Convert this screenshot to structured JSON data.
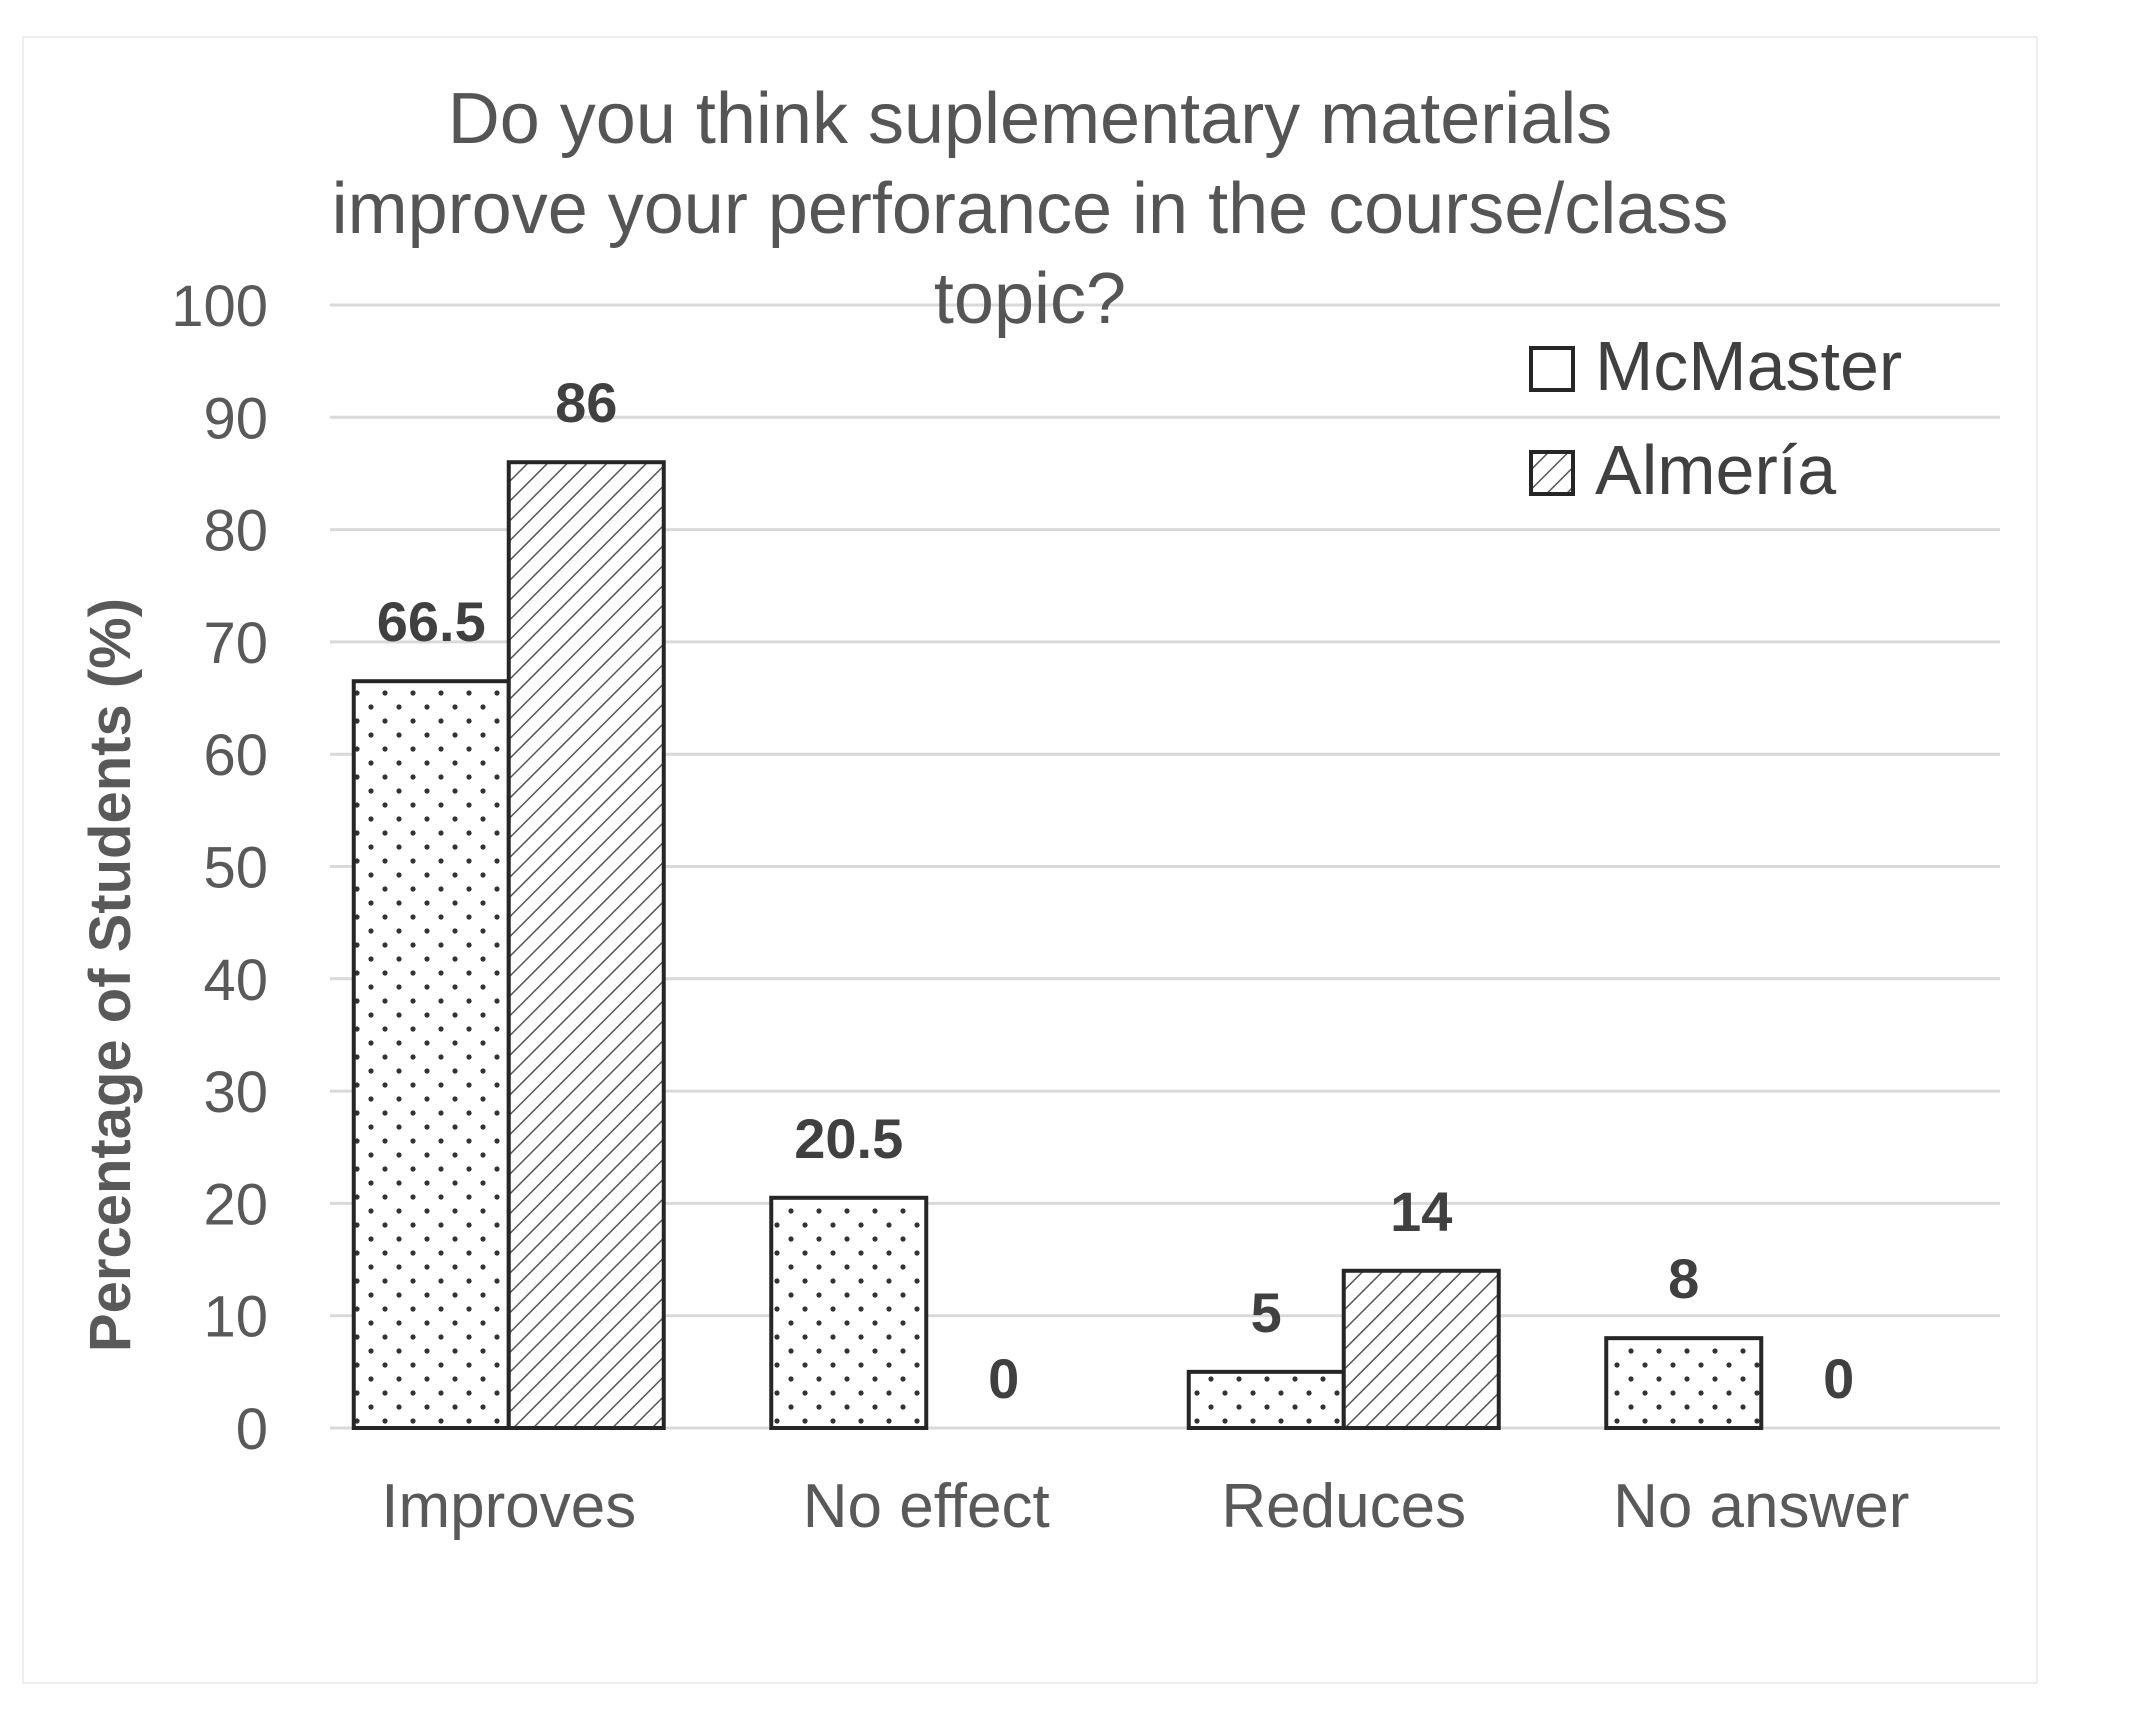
{
  "chart_data": {
    "type": "bar",
    "title_lines": [
      "Do  you think suplementary materials",
      "improve your perforance in the course/class",
      "topic?"
    ],
    "categories": [
      "Improves",
      "No effect",
      "Reduces",
      "No answer"
    ],
    "series": [
      {
        "name": "McMaster",
        "values": [
          66.5,
          20.5,
          5,
          8
        ],
        "labels": [
          "66.5",
          "20.5",
          "5",
          "8"
        ],
        "pattern": "dots"
      },
      {
        "name": "Almería",
        "values": [
          86,
          0,
          14,
          0
        ],
        "labels": [
          "86",
          "0",
          "14",
          "0"
        ],
        "pattern": "diagonal-hatch"
      }
    ],
    "ylabel": "Percentage of Students (%)",
    "ylim": [
      0,
      100
    ],
    "yticks": [
      "0",
      "10",
      "20",
      "30",
      "40",
      "50",
      "60",
      "70",
      "80",
      "90",
      "100"
    ],
    "grid": true,
    "legend_position": "top-right",
    "colors": {
      "bar_fill": "#ffffff",
      "bar_outline": "#262626",
      "gridline": "#d9d9d9",
      "text": "#595959"
    }
  }
}
